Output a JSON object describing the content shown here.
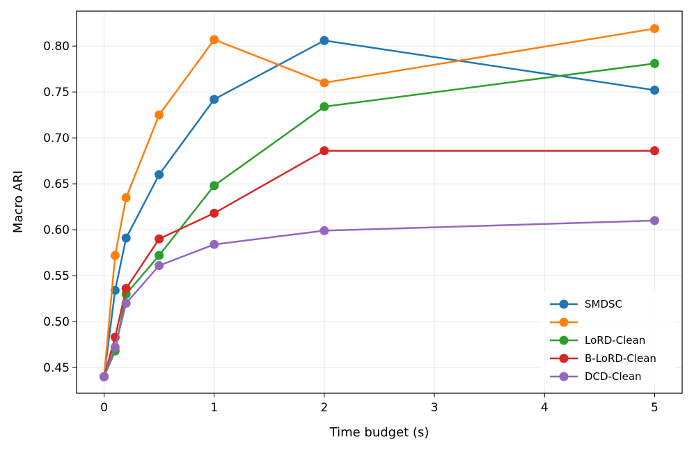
{
  "chart_data": {
    "type": "line",
    "xlabel": "Time budget (s)",
    "ylabel": "Macro ARI",
    "xlim": [
      -0.25,
      5.25
    ],
    "ylim": [
      0.422,
      0.838
    ],
    "xticks": [
      0,
      1,
      2,
      3,
      4,
      5
    ],
    "xtick_labels": [
      "0",
      "1",
      "2",
      "3",
      "4",
      "5"
    ],
    "yticks": [
      0.45,
      0.5,
      0.55,
      0.6,
      0.65,
      0.7,
      0.75,
      0.8
    ],
    "ytick_labels": [
      "0.45",
      "0.50",
      "0.55",
      "0.60",
      "0.65",
      "0.70",
      "0.75",
      "0.80"
    ],
    "grid": true,
    "legend_position": "bottom-right",
    "x": [
      0,
      0.1,
      0.2,
      0.5,
      1,
      2,
      5
    ],
    "series": [
      {
        "name": "SMDSC",
        "color": "#1f77b4",
        "values": [
          0.44,
          0.534,
          0.591,
          0.66,
          0.742,
          0.806,
          0.752
        ]
      },
      {
        "name": "",
        "color": "#ff7f0e",
        "values": [
          0.44,
          0.572,
          0.635,
          0.725,
          0.807,
          0.76,
          0.819
        ]
      },
      {
        "name": "LoRD-Clean",
        "color": "#2ca02c",
        "values": [
          0.44,
          0.468,
          0.53,
          0.572,
          0.648,
          0.734,
          0.781
        ]
      },
      {
        "name": "B-LoRD-Clean",
        "color": "#d62728",
        "values": [
          0.44,
          0.483,
          0.536,
          0.59,
          0.618,
          0.686,
          0.686
        ]
      },
      {
        "name": "DCD-Clean",
        "color": "#9467bd",
        "values": [
          0.44,
          0.472,
          0.52,
          0.561,
          0.584,
          0.599,
          0.61
        ]
      }
    ]
  }
}
